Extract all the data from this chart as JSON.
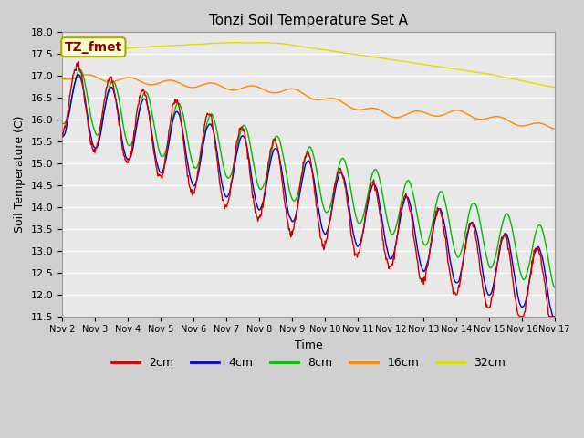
{
  "title": "Tonzi Soil Temperature Set A",
  "xlabel": "Time",
  "ylabel": "Soil Temperature (C)",
  "ylim": [
    11.5,
    18.0
  ],
  "yticks": [
    11.5,
    12.0,
    12.5,
    13.0,
    13.5,
    14.0,
    14.5,
    15.0,
    15.5,
    16.0,
    16.5,
    17.0,
    17.5,
    18.0
  ],
  "xtick_labels": [
    "Nov 2",
    "Nov 3",
    "Nov 4",
    "Nov 5",
    "Nov 6",
    "Nov 7",
    "Nov 8",
    "Nov 9",
    "Nov 10",
    "Nov 11",
    "Nov 12",
    "Nov 13",
    "Nov 14",
    "Nov 15",
    "Nov 16",
    "Nov 17"
  ],
  "colors": {
    "2cm": "#cc0000",
    "4cm": "#0000cc",
    "8cm": "#00bb00",
    "16cm": "#ff8800",
    "32cm": "#dddd00"
  },
  "legend_labels": [
    "2cm",
    "4cm",
    "8cm",
    "16cm",
    "32cm"
  ],
  "annotation_text": "TZ_fmet",
  "annotation_color": "#880000",
  "annotation_bg": "#ffffcc",
  "annotation_edge": "#aaaa00",
  "title_fontsize": 11,
  "axis_fontsize": 9,
  "tick_fontsize": 8,
  "legend_fontsize": 9,
  "plot_bg": "#e8e8e8",
  "fig_bg": "#d0d0d0",
  "grid_color": "#ffffff",
  "lw": 1.0
}
